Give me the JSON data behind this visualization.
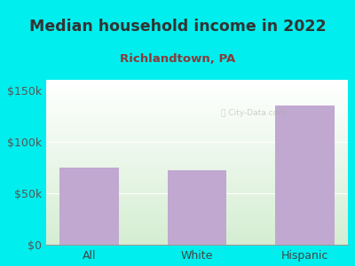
{
  "title": "Median household income in 2022",
  "subtitle": "Richlandtown, PA",
  "categories": [
    "All",
    "White",
    "Hispanic"
  ],
  "values": [
    75000,
    72000,
    135000
  ],
  "bar_color": "#C0A8D0",
  "title_color": "#333333",
  "subtitle_color": "#8B3A3A",
  "ylabel_color": "#555555",
  "xlabel_color": "#444444",
  "bg_outer": "#00EEEE",
  "bg_plot_top": "#F0FAF0",
  "bg_plot_bottom": "#D4EDD0",
  "yticks": [
    0,
    50000,
    100000,
    150000
  ],
  "ytick_labels": [
    "$0",
    "$50k",
    "$100k",
    "$150k"
  ],
  "ylim": [
    0,
    160000
  ],
  "title_fontsize": 12.5,
  "subtitle_fontsize": 9.5,
  "tick_fontsize": 9,
  "bar_width": 0.55
}
